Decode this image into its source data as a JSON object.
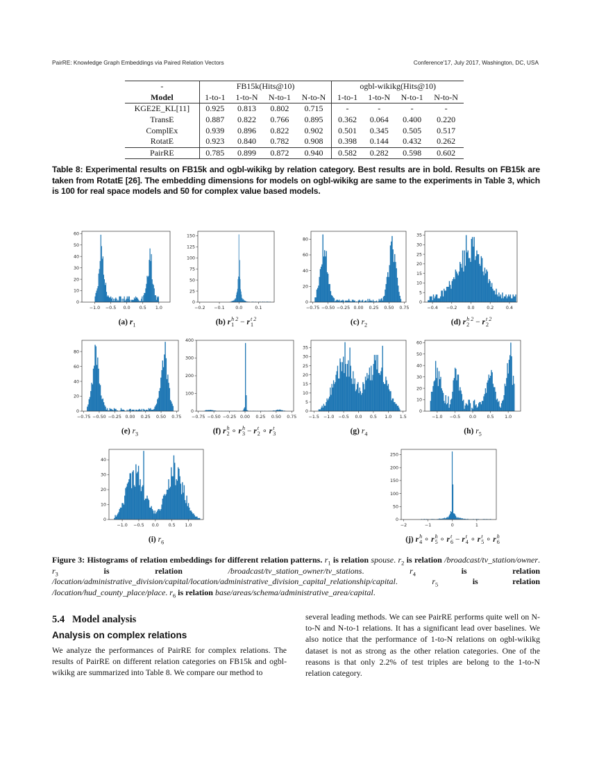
{
  "header": {
    "left": "PairRE: Knowledge Graph Embeddings via Paired Relation Vectors",
    "right": "Conference'17, July 2017, Washington, DC, USA"
  },
  "table": {
    "corner": "-",
    "group_headers": [
      "FB15k(Hits@10)",
      "ogbl-wikikg(Hits@10)"
    ],
    "model_header": "Model",
    "columns": [
      "1-to-1",
      "1-to-N",
      "N-to-1",
      "N-to-N",
      "1-to-1",
      "1-to-N",
      "N-to-1",
      "N-to-N"
    ],
    "rows": [
      {
        "model": "KGE2E_KL[11]",
        "values": [
          "0.925",
          "0.813",
          "0.802",
          "0.715",
          "-",
          "-",
          "-",
          "-"
        ]
      },
      {
        "model": "TransE",
        "values": [
          "0.887",
          "0.822",
          "0.766",
          "0.895",
          "0.362",
          "0.064",
          "0.400",
          "0.220"
        ]
      },
      {
        "model": "ComplEx",
        "values": [
          "0.939",
          "0.896",
          "0.822",
          "0.902",
          "0.501",
          "0.345",
          "0.505",
          "0.517"
        ]
      },
      {
        "model": "RotatE",
        "values": [
          "0.923",
          "0.840",
          "0.782",
          "0.908",
          "0.398",
          "0.144",
          "0.432",
          "0.262"
        ]
      },
      {
        "model": "PairRE",
        "values": [
          "0.785",
          "0.899",
          "0.872",
          "0.940",
          "0.582",
          "0.282",
          "0.598",
          "0.602"
        ]
      }
    ],
    "caption": "Table 8: Experimental results on FB15k and ogbl-wikikg by relation category. Best results are in bold. Results on FB15k are taken from RotatE [26]. The embedding dimensions for models on ogbl-wikikg are same to the experiments in Table 3, which is 100 for real space models and 50 for complex value based models."
  },
  "bar_color": "#1f77b4",
  "chart_data": [
    {
      "type": "bar",
      "label": "(a)",
      "math": [
        {
          "b": "r",
          "sub": "1"
        }
      ],
      "xlim": [
        -1.4,
        1.35
      ],
      "ylim": [
        0,
        62
      ],
      "xticks": [
        "-1.0",
        "-0.5",
        "0.0",
        "0.5",
        "1.0"
      ],
      "yticks": [
        "0",
        "10",
        "20",
        "30",
        "40",
        "50",
        "60"
      ],
      "range": [
        -1.0,
        1.0
      ],
      "bins": 90,
      "peaks": [
        [
          -0.78,
          36,
          0.08
        ],
        [
          0.72,
          33,
          0.08
        ]
      ],
      "baseline": 4,
      "spikes": [
        [
          -0.8,
          59
        ],
        [
          -0.75,
          40
        ],
        [
          0.72,
          47
        ],
        [
          0.77,
          42
        ],
        [
          -1.33,
          2
        ],
        [
          1.3,
          2
        ],
        [
          -1.15,
          1
        ],
        [
          1.05,
          1
        ]
      ]
    },
    {
      "type": "bar",
      "label": "(b)",
      "math": [
        {
          "b": "r",
          "sub": "1",
          "sup": "h 2"
        },
        "−",
        {
          "b": "r",
          "sub": "1",
          "sup": "t 2"
        }
      ],
      "xlim": [
        -0.21,
        0.18
      ],
      "ylim": [
        0,
        160
      ],
      "xticks": [
        "-0.2",
        "-0.1",
        "0.0",
        "0.1"
      ],
      "yticks": [
        "0",
        "25",
        "50",
        "75",
        "100",
        "125",
        "150"
      ],
      "range": [
        -0.05,
        0.17
      ],
      "bins": 100,
      "peaks": [
        [
          0,
          55,
          0.006
        ],
        [
          0,
          12,
          0.018
        ]
      ],
      "baseline": 0.6,
      "spikes": [
        [
          0.0,
          153
        ],
        [
          0.004,
          95
        ]
      ]
    },
    {
      "type": "bar",
      "label": "(c)",
      "math": [
        {
          "b": "r",
          "sub": "2",
          "plain": true
        }
      ],
      "xlim": [
        -0.78,
        0.78
      ],
      "ylim": [
        0,
        90
      ],
      "xticks": [
        "-0.75",
        "-0.50",
        "-0.25",
        "0.00",
        "0.25",
        "0.50",
        "0.75"
      ],
      "yticks": [
        "0",
        "20",
        "40",
        "60",
        "80"
      ],
      "range": [
        -0.72,
        0.7
      ],
      "bins": 100,
      "peaks": [
        [
          -0.57,
          68,
          0.06
        ],
        [
          0.55,
          68,
          0.06
        ]
      ],
      "baseline": 3,
      "spikes": [
        [
          -0.58,
          86
        ],
        [
          0.55,
          84
        ]
      ]
    },
    {
      "type": "bar",
      "label": "(d)",
      "math": [
        {
          "b": "r",
          "sub": "2",
          "sup": "h 2"
        },
        "−",
        {
          "b": "r",
          "sub": "2",
          "sup": "t 2"
        }
      ],
      "xlim": [
        -0.48,
        0.48
      ],
      "ylim": [
        0,
        37
      ],
      "xticks": [
        "-0.4",
        "-0.2",
        "0.0",
        "0.2",
        "0.4"
      ],
      "yticks": [
        "0",
        "5",
        "10",
        "15",
        "20",
        "25",
        "30",
        "35"
      ],
      "range": [
        -0.45,
        0.47
      ],
      "bins": 100,
      "peaks": [
        [
          0.0,
          25,
          0.14
        ]
      ],
      "baseline": 3,
      "spikes": [
        [
          -0.05,
          35
        ],
        [
          0.01,
          34
        ],
        [
          0.03,
          34
        ]
      ]
    },
    {
      "type": "bar",
      "label": "(e)",
      "math": [
        {
          "b": "r",
          "sub": "3",
          "plain": true
        }
      ],
      "xlim": [
        -0.78,
        0.78
      ],
      "ylim": [
        0,
        95
      ],
      "xticks": [
        "-0.75",
        "-0.50",
        "-0.25",
        "0.00",
        "0.25",
        "0.50",
        "0.75"
      ],
      "yticks": [
        "0",
        "20",
        "40",
        "60",
        "80"
      ],
      "range": [
        -0.7,
        0.7
      ],
      "bins": 100,
      "peaks": [
        [
          -0.55,
          68,
          0.06
        ],
        [
          0.55,
          68,
          0.06
        ]
      ],
      "baseline": 3,
      "spikes": [
        [
          -0.57,
          89
        ],
        [
          0.57,
          93
        ]
      ]
    },
    {
      "type": "bar",
      "label": "(f)",
      "math": [
        {
          "b": "r",
          "sub": "2",
          "sup": "h"
        },
        "∘",
        {
          "b": "r",
          "sub": "3",
          "sup": "h"
        },
        "−",
        {
          "b": "r",
          "sub": "2",
          "sup": "t"
        },
        "∘",
        {
          "b": "r",
          "sub": "3",
          "sup": "t"
        }
      ],
      "xlim": [
        -0.78,
        0.78
      ],
      "ylim": [
        0,
        400
      ],
      "xticks": [
        "-0.75",
        "-0.50",
        "-0.25",
        "0.00",
        "0.25",
        "0.50",
        "0.75"
      ],
      "yticks": [
        "0",
        "100",
        "200",
        "300",
        "400"
      ],
      "range": [
        -0.65,
        0.65
      ],
      "bins": 100,
      "peaks": [
        [
          0,
          30,
          0.015
        ],
        [
          -0.58,
          7,
          0.05
        ],
        [
          0.55,
          7,
          0.05
        ]
      ],
      "baseline": 2,
      "spikes": [
        [
          0.0,
          385
        ],
        [
          0.013,
          90
        ]
      ]
    },
    {
      "type": "bar",
      "label": "(g)",
      "math": [
        {
          "b": "r",
          "sub": "4",
          "plain": true
        }
      ],
      "xlim": [
        -1.6,
        1.6
      ],
      "ylim": [
        0,
        39
      ],
      "xticks": [
        "-1.5",
        "-1.0",
        "-0.5",
        "0.0",
        "0.5",
        "1.0",
        "1.5"
      ],
      "yticks": [
        "0",
        "5",
        "10",
        "15",
        "20",
        "25",
        "30",
        "35"
      ],
      "range": [
        -1.35,
        1.4
      ],
      "bins": 100,
      "peaks": [
        [
          -0.5,
          26,
          0.33
        ],
        [
          0.62,
          26,
          0.33
        ]
      ],
      "baseline": 0,
      "spikes": [
        [
          -0.45,
          38
        ],
        [
          -0.3,
          35
        ],
        [
          0.82,
          36
        ]
      ]
    },
    {
      "type": "bar",
      "label": "(h)",
      "math": [
        {
          "b": "r",
          "sub": "5",
          "plain": true
        }
      ],
      "xlim": [
        -1.35,
        1.35
      ],
      "ylim": [
        0,
        62
      ],
      "xticks": [
        "-1.0",
        "-0.5",
        "0.0",
        "0.5",
        "1.0"
      ],
      "yticks": [
        "0",
        "10",
        "20",
        "30",
        "40",
        "50",
        "60"
      ],
      "range": [
        -1.2,
        1.18
      ],
      "bins": 100,
      "peaks": [
        [
          -1.0,
          28,
          0.12
        ],
        [
          -0.45,
          26,
          0.1
        ],
        [
          0.5,
          27,
          0.1
        ],
        [
          1.05,
          36,
          0.1
        ]
      ],
      "baseline": 8,
      "spikes": [
        [
          1.07,
          60
        ],
        [
          -1.05,
          44
        ]
      ]
    },
    {
      "type": "bar",
      "label": "(i)",
      "math": [
        {
          "b": "r",
          "sub": "6",
          "plain": true
        }
      ],
      "xlim": [
        -1.4,
        1.45
      ],
      "ylim": [
        0,
        47
      ],
      "xticks": [
        "-1.0",
        "-0.5",
        "0.0",
        "0.5",
        "1.0"
      ],
      "yticks": [
        "0",
        "10",
        "20",
        "30",
        "40"
      ],
      "range": [
        -1.25,
        1.35
      ],
      "bins": 100,
      "peaks": [
        [
          -0.6,
          31,
          0.27
        ],
        [
          0.6,
          31,
          0.27
        ]
      ],
      "baseline": 0,
      "spikes": [
        [
          -0.35,
          46
        ],
        [
          0.55,
          43
        ]
      ]
    },
    {
      "type": "bar",
      "label": "(j)",
      "math": [
        {
          "b": "r",
          "sub": "4",
          "sup": "h"
        },
        "∘",
        {
          "b": "r",
          "sub": "5",
          "sup": "h"
        },
        "∘",
        {
          "b": "r",
          "sub": "6",
          "sup": "t"
        },
        "−",
        {
          "b": "r",
          "sub": "4",
          "sup": "t"
        },
        "∘",
        {
          "b": "r",
          "sub": "5",
          "sup": "t"
        },
        "∘",
        {
          "b": "r",
          "sub": "6",
          "sup": "h"
        }
      ],
      "xlim": [
        -2.1,
        1.8
      ],
      "ylim": [
        0,
        270
      ],
      "xticks": [
        "-2",
        "-1",
        "0",
        "1"
      ],
      "yticks": [
        "0",
        "50",
        "100",
        "150",
        "200",
        "250"
      ],
      "range": [
        -1.3,
        1.6
      ],
      "bins": 100,
      "peaks": [
        [
          0,
          30,
          0.07
        ],
        [
          0,
          8,
          0.3
        ]
      ],
      "baseline": 1.5,
      "spikes": [
        [
          0,
          262
        ],
        [
          0.03,
          135
        ]
      ]
    }
  ],
  "figure_caption": [
    {
      "t": "Figure 3: Histograms of relation embeddings for different relation patterns. ",
      "s": "b"
    },
    {
      "t": "r",
      "s": "i"
    },
    {
      "t": "1",
      "s": "sub"
    },
    {
      "t": " is relation ",
      "s": "b"
    },
    {
      "t": "spouse",
      "s": "i"
    },
    {
      "t": ". ",
      "s": ""
    },
    {
      "t": "r",
      "s": "i"
    },
    {
      "t": "2",
      "s": "sub"
    },
    {
      "t": " is relation ",
      "s": "b"
    },
    {
      "t": "/broadcast/tv_station/owner",
      "s": "i"
    },
    {
      "t": ". ",
      "s": ""
    },
    {
      "t": "r",
      "s": "i"
    },
    {
      "t": "3",
      "s": "sub"
    },
    {
      "t": " is relation ",
      "s": "b"
    },
    {
      "t": "/broadcast/tv_station_owner/tv_stations",
      "s": "i"
    },
    {
      "t": ". ",
      "s": ""
    },
    {
      "t": "r",
      "s": "i"
    },
    {
      "t": "4",
      "s": "sub"
    },
    {
      "t": " is relation ",
      "s": "b"
    },
    {
      "t": "/location/administrative_division/capital/location/administrative_division_capital_relationship/capital",
      "s": "i"
    },
    {
      "t": ". ",
      "s": ""
    },
    {
      "t": "r",
      "s": "i"
    },
    {
      "t": "5",
      "s": "sub"
    },
    {
      "t": " is relation ",
      "s": "b"
    },
    {
      "t": "/location/hud_county_place/place",
      "s": "i"
    },
    {
      "t": ". ",
      "s": ""
    },
    {
      "t": "r",
      "s": "i"
    },
    {
      "t": "6",
      "s": "sub"
    },
    {
      "t": " is relation ",
      "s": "b"
    },
    {
      "t": "base/areas/schema/administrative_area/capital",
      "s": "i"
    },
    {
      "t": ".",
      "s": ""
    }
  ],
  "section": {
    "number": "5.4",
    "title": "Model analysis",
    "subtitle": "Analysis on complex relations",
    "para_left": "We analyze the performances of PairRE for complex relations. The results of PairRE on different relation categories on FB15k and ogbl-wikikg are summarized into Table 8. We compare our method to",
    "para_right": "several leading methods. We can see PairRE performs quite well on N-to-N and N-to-1 relations. It has a significant lead over baselines. We also notice that the performance of 1-to-N relations on ogbl-wikikg dataset is not as strong as the other relation categories. One of the reasons is that only 2.2% of test triples are belong to the 1-to-N relation category."
  }
}
